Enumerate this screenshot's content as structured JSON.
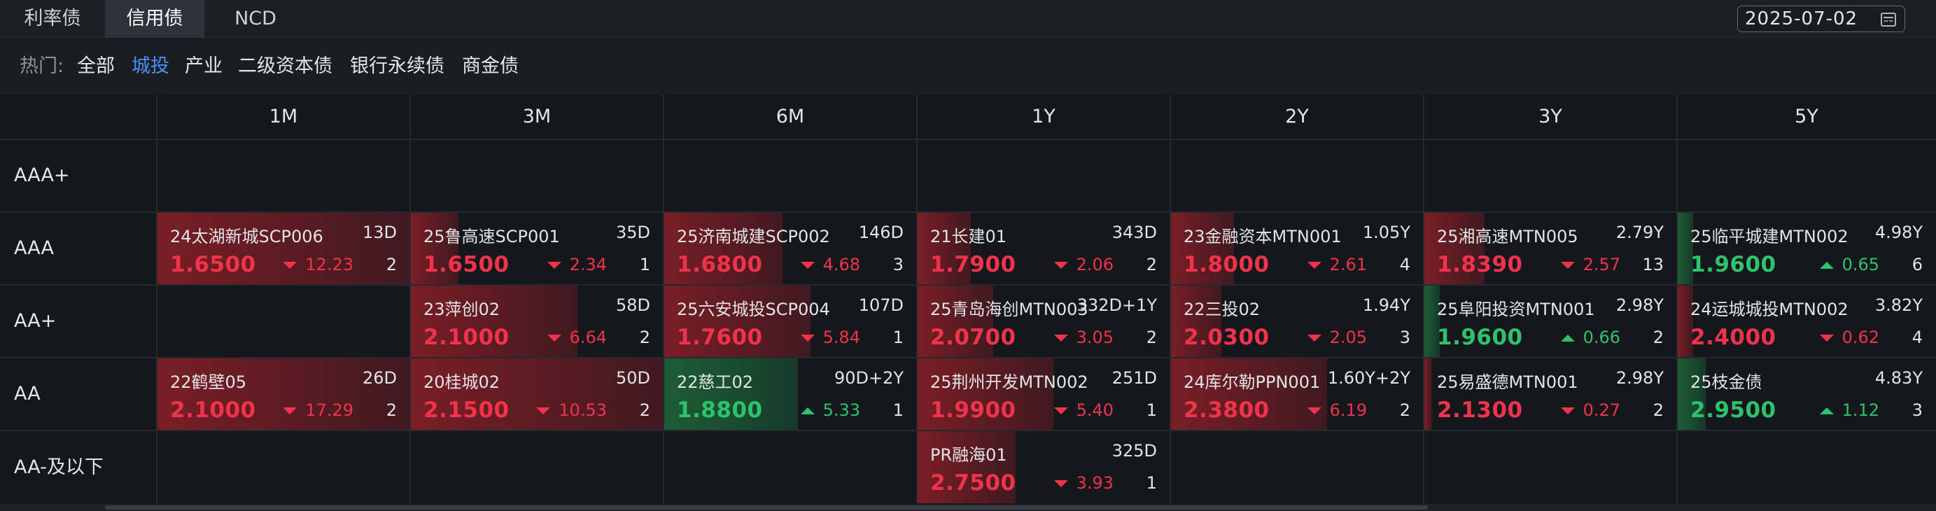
{
  "tabs": [
    {
      "label": "利率债"
    },
    {
      "label": "信用债"
    },
    {
      "label": "NCD"
    }
  ],
  "date": "2025-07-02",
  "hot": {
    "label": "热门:",
    "chips": [
      "全部",
      "城投",
      "产业",
      "二级资本债",
      "银行永续债",
      "商金债"
    ],
    "active": "城投"
  },
  "columns": [
    "1M",
    "3M",
    "6M",
    "1Y",
    "2Y",
    "3Y",
    "5Y"
  ],
  "rows": [
    "AAA+",
    "AAA",
    "AA+",
    "AA",
    "AA-及以下"
  ],
  "colors": {
    "up": "#f0334a",
    "down": "#2dc26b",
    "accent": "#4a8ff7"
  },
  "cells": {
    "AAA": [
      {
        "name": "24太湖新城SCP006",
        "term": "13D",
        "rate": "1.6500",
        "change": "12.23",
        "dir": "down",
        "count": "2",
        "color": "red",
        "fill": 1.0
      },
      {
        "name": "25鲁高速SCP001",
        "term": "35D",
        "rate": "1.6500",
        "change": "2.34",
        "dir": "down",
        "count": "1",
        "color": "red",
        "fill": 0.19
      },
      {
        "name": "25济南城建SCP002",
        "term": "146D",
        "rate": "1.6800",
        "change": "4.68",
        "dir": "down",
        "count": "3",
        "color": "red",
        "fill": 0.47
      },
      {
        "name": "21长建01",
        "term": "343D",
        "rate": "1.7900",
        "change": "2.06",
        "dir": "down",
        "count": "2",
        "color": "red",
        "fill": 0.21
      },
      {
        "name": "23金融资本MTN001",
        "term": "1.05Y",
        "rate": "1.8000",
        "change": "2.61",
        "dir": "down",
        "count": "4",
        "color": "red",
        "fill": 0.25
      },
      {
        "name": "25湘高速MTN005",
        "term": "2.79Y",
        "rate": "1.8390",
        "change": "2.57",
        "dir": "down",
        "count": "13",
        "color": "red",
        "fill": 0.24
      },
      {
        "name": "25临平城建MTN002",
        "term": "4.98Y",
        "rate": "1.9600",
        "change": "0.65",
        "dir": "up",
        "count": "6",
        "color": "green",
        "fill": 0.06
      }
    ],
    "AA+": [
      null,
      {
        "name": "23萍创02",
        "term": "58D",
        "rate": "2.1000",
        "change": "6.64",
        "dir": "down",
        "count": "2",
        "color": "red",
        "fill": 0.66
      },
      {
        "name": "25六安城投SCP004",
        "term": "107D",
        "rate": "1.7600",
        "change": "5.84",
        "dir": "down",
        "count": "1",
        "color": "red",
        "fill": 0.58
      },
      {
        "name": "25青岛海创MTN003",
        "term": "332D+1Y",
        "rate": "2.0700",
        "change": "3.05",
        "dir": "down",
        "count": "2",
        "color": "red",
        "fill": 0.3
      },
      {
        "name": "22三投02",
        "term": "1.94Y",
        "rate": "2.0300",
        "change": "2.05",
        "dir": "down",
        "count": "3",
        "color": "red",
        "fill": 0.2
      },
      {
        "name": "25阜阳投资MTN001",
        "term": "2.98Y",
        "rate": "1.9600",
        "change": "0.66",
        "dir": "up",
        "count": "2",
        "color": "green",
        "fill": 0.06
      },
      {
        "name": "24运城城投MTN002",
        "term": "3.82Y",
        "rate": "2.4000",
        "change": "0.62",
        "dir": "down",
        "count": "4",
        "color": "red",
        "fill": 0.06
      }
    ],
    "AA": [
      {
        "name": "22鹤壁05",
        "term": "26D",
        "rate": "2.1000",
        "change": "17.29",
        "dir": "down",
        "count": "2",
        "color": "red",
        "fill": 1.0
      },
      {
        "name": "20桂城02",
        "term": "50D",
        "rate": "2.1500",
        "change": "10.53",
        "dir": "down",
        "count": "2",
        "color": "red",
        "fill": 1.0
      },
      {
        "name": "22慈工02",
        "term": "90D+2Y",
        "rate": "1.8800",
        "change": "5.33",
        "dir": "up",
        "count": "1",
        "color": "green",
        "fill": 0.53
      },
      {
        "name": "25荆州开发MTN002",
        "term": "251D",
        "rate": "1.9900",
        "change": "5.40",
        "dir": "down",
        "count": "1",
        "color": "red",
        "fill": 0.54
      },
      {
        "name": "24库尔勒PPN001",
        "term": "1.60Y+2Y",
        "rate": "2.3800",
        "change": "6.19",
        "dir": "down",
        "count": "2",
        "color": "red",
        "fill": 0.62
      },
      {
        "name": "25易盛德MTN001",
        "term": "2.98Y",
        "rate": "2.1300",
        "change": "0.27",
        "dir": "down",
        "count": "2",
        "color": "red",
        "fill": 0.03
      },
      {
        "name": "25枝金债",
        "term": "4.83Y",
        "rate": "2.9500",
        "change": "1.12",
        "dir": "up",
        "count": "3",
        "color": "green",
        "fill": 0.11
      }
    ],
    "AA-及以下": [
      null,
      null,
      null,
      {
        "name": "PR融海01",
        "term": "325D",
        "rate": "2.7500",
        "change": "3.93",
        "dir": "down",
        "count": "1",
        "color": "red",
        "fill": 0.39
      },
      null,
      null,
      null
    ]
  }
}
